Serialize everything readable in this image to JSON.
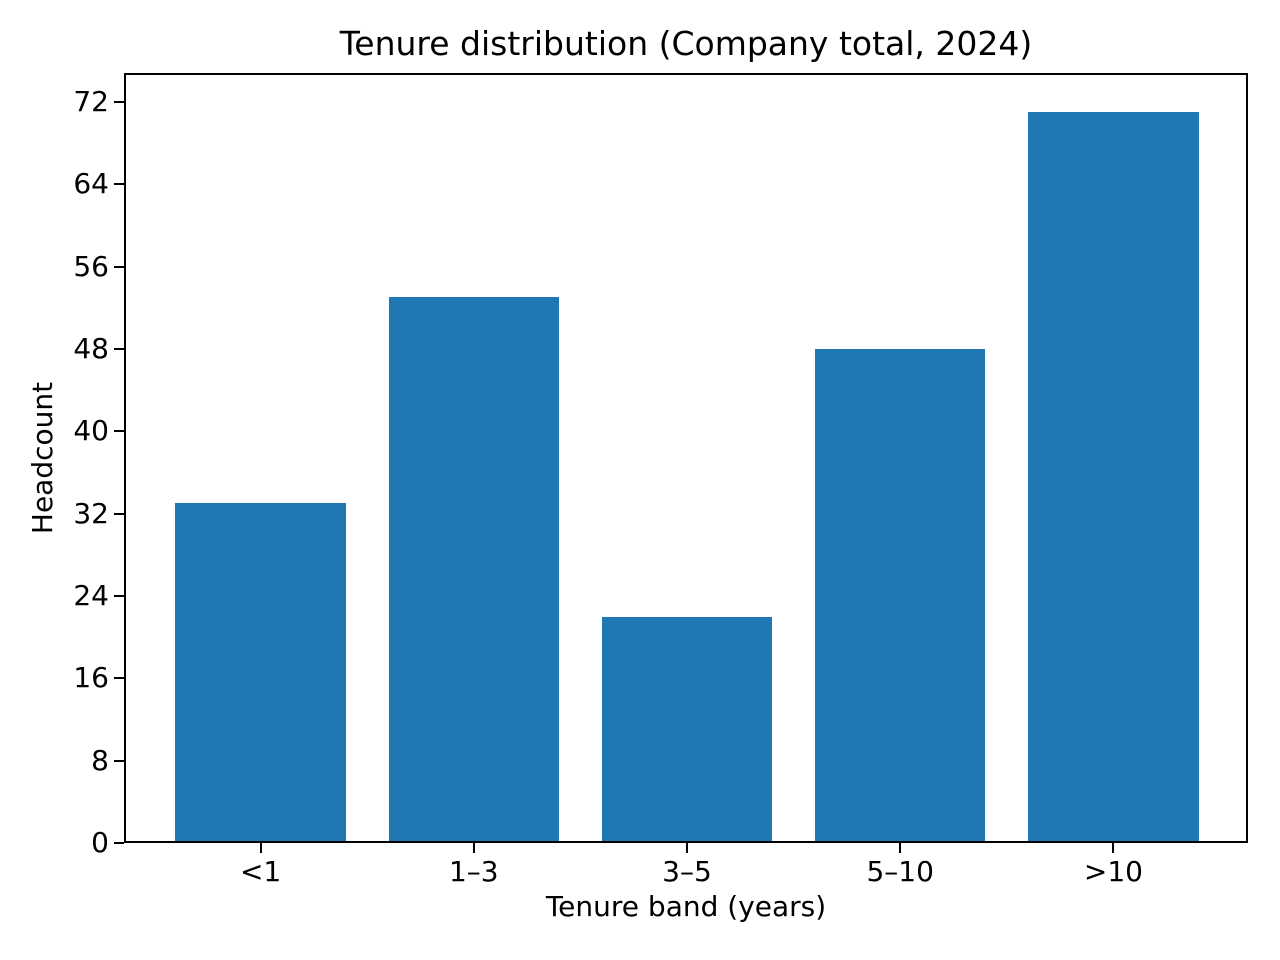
{
  "chart_data": {
    "type": "bar",
    "title": "Tenure distribution (Company total, 2024)",
    "xlabel": "Tenure band (years)",
    "ylabel": "Headcount",
    "categories": [
      "<1",
      "1–3",
      "3–5",
      "5–10",
      ">10"
    ],
    "values": [
      33,
      53,
      22,
      48,
      71
    ],
    "yticks": [
      0,
      8,
      16,
      24,
      32,
      40,
      48,
      56,
      64,
      72
    ],
    "ylim": [
      0,
      74.8
    ],
    "bar_color": "#1f77b4",
    "spine_color": "#000000",
    "text_color": "#000000",
    "background_color": "#ffffff",
    "grid": false,
    "legend_position": "none"
  }
}
